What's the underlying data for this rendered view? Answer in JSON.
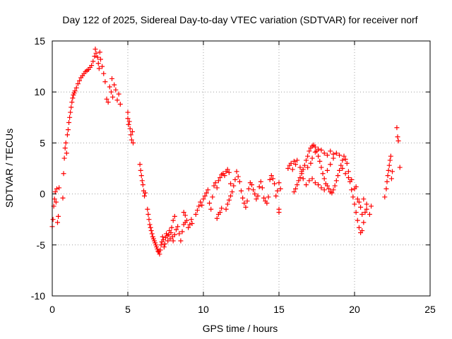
{
  "chart_data": {
    "type": "scatter",
    "title": "Day 122 of 2025, Sidereal Day-to-day VTEC variation (SDTVAR) for receiver norf",
    "xlabel": "GPS time / hours",
    "ylabel": "SDTVAR / TECUs",
    "xlim": [
      0,
      25
    ],
    "ylim": [
      -10,
      15
    ],
    "xticks": [
      0,
      5,
      10,
      15,
      20,
      25
    ],
    "yticks": [
      -10,
      -5,
      0,
      5,
      10,
      15
    ],
    "xtick_labels": [
      "0",
      "5",
      "10",
      "15",
      "20",
      "25"
    ],
    "ytick_labels": [
      "-10",
      "-5",
      "0",
      "5",
      "10",
      "15"
    ],
    "grid": true,
    "marker": "+",
    "color": "#ff0000",
    "series": [
      {
        "name": "SDTVAR",
        "points": [
          [
            0.0,
            -3.2
          ],
          [
            0.05,
            -2.5
          ],
          [
            0.1,
            -1.2
          ],
          [
            0.15,
            -0.5
          ],
          [
            0.2,
            0.2
          ],
          [
            0.25,
            -0.8
          ],
          [
            0.3,
            0.5
          ],
          [
            0.35,
            -2.8
          ],
          [
            0.4,
            -2.2
          ],
          [
            0.45,
            0.6
          ],
          [
            0.7,
            -0.4
          ],
          [
            0.75,
            2.0
          ],
          [
            0.8,
            3.5
          ],
          [
            0.85,
            4.5
          ],
          [
            0.9,
            5.0
          ],
          [
            0.95,
            4.0
          ],
          [
            1.0,
            5.8
          ],
          [
            1.05,
            6.3
          ],
          [
            1.1,
            7.0
          ],
          [
            1.15,
            7.5
          ],
          [
            1.2,
            8.0
          ],
          [
            1.25,
            8.5
          ],
          [
            1.3,
            9.0
          ],
          [
            1.35,
            9.4
          ],
          [
            1.4,
            9.7
          ],
          [
            1.45,
            9.9
          ],
          [
            1.5,
            10.1
          ],
          [
            1.6,
            10.4
          ],
          [
            1.7,
            10.8
          ],
          [
            1.8,
            11.1
          ],
          [
            1.9,
            11.4
          ],
          [
            2.0,
            11.6
          ],
          [
            2.1,
            11.8
          ],
          [
            2.2,
            12.0
          ],
          [
            2.3,
            12.1
          ],
          [
            2.4,
            12.2
          ],
          [
            2.5,
            12.4
          ],
          [
            2.6,
            12.6
          ],
          [
            2.7,
            13.0
          ],
          [
            2.8,
            13.5
          ],
          [
            2.85,
            14.2
          ],
          [
            2.9,
            13.8
          ],
          [
            3.0,
            13.4
          ],
          [
            3.05,
            12.8
          ],
          [
            3.1,
            12.3
          ],
          [
            3.15,
            13.9
          ],
          [
            3.2,
            13.2
          ],
          [
            3.3,
            12.5
          ],
          [
            3.4,
            11.8
          ],
          [
            3.5,
            11.0
          ],
          [
            3.6,
            9.3
          ],
          [
            3.7,
            9.0
          ],
          [
            3.8,
            10.5
          ],
          [
            3.9,
            10.0
          ],
          [
            3.95,
            11.3
          ],
          [
            4.0,
            9.5
          ],
          [
            4.1,
            10.7
          ],
          [
            4.2,
            10.2
          ],
          [
            4.3,
            9.2
          ],
          [
            4.4,
            9.8
          ],
          [
            4.5,
            8.8
          ],
          [
            5.0,
            8.0
          ],
          [
            5.0,
            7.4
          ],
          [
            5.05,
            6.8
          ],
          [
            5.1,
            7.1
          ],
          [
            5.15,
            6.4
          ],
          [
            5.2,
            5.8
          ],
          [
            5.25,
            5.3
          ],
          [
            5.3,
            6.1
          ],
          [
            5.35,
            5.0
          ],
          [
            5.8,
            2.9
          ],
          [
            5.85,
            2.3
          ],
          [
            5.9,
            1.8
          ],
          [
            5.95,
            1.3
          ],
          [
            6.0,
            0.9
          ],
          [
            6.05,
            0.3
          ],
          [
            6.1,
            -0.2
          ],
          [
            6.15,
            0.1
          ],
          [
            6.3,
            -1.5
          ],
          [
            6.35,
            -2.0
          ],
          [
            6.4,
            -2.5
          ],
          [
            6.45,
            -3.0
          ],
          [
            6.5,
            -3.3
          ],
          [
            6.55,
            -3.6
          ],
          [
            6.6,
            -3.9
          ],
          [
            6.65,
            -4.2
          ],
          [
            6.7,
            -4.4
          ],
          [
            6.75,
            -4.6
          ],
          [
            6.8,
            -4.8
          ],
          [
            6.85,
            -5.0
          ],
          [
            6.9,
            -5.2
          ],
          [
            6.95,
            -5.4
          ],
          [
            7.0,
            -5.6
          ],
          [
            7.05,
            -5.7
          ],
          [
            7.1,
            -5.9
          ],
          [
            7.15,
            -5.5
          ],
          [
            7.2,
            -5.0
          ],
          [
            7.25,
            -4.7
          ],
          [
            7.3,
            -4.2
          ],
          [
            7.35,
            -4.5
          ],
          [
            7.4,
            -5.2
          ],
          [
            7.45,
            -4.9
          ],
          [
            7.5,
            -4.3
          ],
          [
            7.55,
            -3.9
          ],
          [
            7.6,
            -4.1
          ],
          [
            7.65,
            -4.6
          ],
          [
            7.7,
            -4.0
          ],
          [
            7.75,
            -3.6
          ],
          [
            7.8,
            -4.4
          ],
          [
            7.85,
            -3.8
          ],
          [
            7.9,
            -3.3
          ],
          [
            7.95,
            -4.2
          ],
          [
            8.0,
            -4.6
          ],
          [
            8.1,
            -4.0
          ],
          [
            8.2,
            -3.5
          ],
          [
            8.3,
            -3.2
          ],
          [
            8.4,
            -3.9
          ],
          [
            8.5,
            -4.6
          ],
          [
            8.6,
            -3.7
          ],
          [
            8.7,
            -3.0
          ],
          [
            8.8,
            -2.8
          ],
          [
            8.9,
            -2.6
          ],
          [
            9.0,
            -3.3
          ],
          [
            9.1,
            -3.0
          ],
          [
            9.2,
            -2.5
          ],
          [
            9.25,
            -2.9
          ],
          [
            8.0,
            -2.6
          ],
          [
            8.1,
            -2.2
          ],
          [
            8.7,
            -1.8
          ],
          [
            8.8,
            -2.1
          ],
          [
            9.5,
            -2.0
          ],
          [
            9.6,
            -1.6
          ],
          [
            9.7,
            -1.2
          ],
          [
            9.8,
            -0.8
          ],
          [
            9.9,
            -1.1
          ],
          [
            10.0,
            -0.5
          ],
          [
            10.1,
            -0.2
          ],
          [
            10.2,
            0.1
          ],
          [
            10.3,
            0.4
          ],
          [
            10.4,
            -0.9
          ],
          [
            10.5,
            -1.5
          ],
          [
            10.6,
            -0.3
          ],
          [
            10.7,
            0.8
          ],
          [
            10.8,
            1.1
          ],
          [
            10.9,
            0.6
          ],
          [
            11.0,
            1.3
          ],
          [
            11.1,
            1.6
          ],
          [
            11.2,
            1.9
          ],
          [
            11.3,
            2.0
          ],
          [
            11.4,
            1.8
          ],
          [
            11.5,
            2.2
          ],
          [
            11.6,
            2.4
          ],
          [
            11.7,
            2.1
          ],
          [
            11.8,
            1.0
          ],
          [
            11.9,
            0.2
          ],
          [
            12.0,
            0.8
          ],
          [
            12.1,
            1.4
          ],
          [
            12.2,
            2.2
          ],
          [
            12.3,
            1.7
          ],
          [
            12.4,
            1.2
          ],
          [
            12.5,
            0.3
          ],
          [
            12.6,
            -0.4
          ],
          [
            12.7,
            -0.9
          ],
          [
            12.8,
            -1.3
          ],
          [
            12.9,
            -0.7
          ],
          [
            13.0,
            0.5
          ],
          [
            13.1,
            1.1
          ],
          [
            13.2,
            0.9
          ],
          [
            13.3,
            0.4
          ],
          [
            13.4,
            0.0
          ],
          [
            13.5,
            -0.5
          ],
          [
            13.6,
            -0.2
          ],
          [
            13.7,
            0.7
          ],
          [
            13.8,
            1.2
          ],
          [
            13.9,
            0.6
          ],
          [
            14.0,
            -0.4
          ],
          [
            14.1,
            -0.7
          ],
          [
            14.2,
            -0.9
          ],
          [
            14.3,
            -0.3
          ],
          [
            14.4,
            1.4
          ],
          [
            14.5,
            1.8
          ],
          [
            14.6,
            1.5
          ],
          [
            14.7,
            1.0
          ],
          [
            14.8,
            -0.2
          ],
          [
            14.9,
            0.3
          ],
          [
            15.0,
            1.1
          ],
          [
            15.1,
            0.5
          ],
          [
            15.0,
            -1.8
          ],
          [
            15.0,
            -1.5
          ],
          [
            11.5,
            -1.5
          ],
          [
            11.6,
            -1.0
          ],
          [
            11.7,
            -0.6
          ],
          [
            11.8,
            -0.2
          ],
          [
            10.9,
            -2.4
          ],
          [
            11.0,
            -2.0
          ],
          [
            11.1,
            -1.8
          ],
          [
            11.2,
            -1.4
          ],
          [
            16.0,
            0.2
          ],
          [
            16.1,
            0.5
          ],
          [
            16.2,
            0.9
          ],
          [
            16.3,
            1.3
          ],
          [
            16.4,
            1.6
          ],
          [
            16.5,
            2.0
          ],
          [
            16.6,
            2.4
          ],
          [
            16.7,
            2.8
          ],
          [
            16.8,
            3.3
          ],
          [
            16.9,
            3.7
          ],
          [
            17.0,
            4.2
          ],
          [
            17.1,
            4.5
          ],
          [
            17.2,
            4.7
          ],
          [
            17.3,
            4.8
          ],
          [
            17.4,
            4.6
          ],
          [
            17.5,
            4.2
          ],
          [
            17.6,
            3.7
          ],
          [
            17.7,
            3.2
          ],
          [
            17.8,
            2.6
          ],
          [
            17.9,
            2.0
          ],
          [
            18.0,
            1.5
          ],
          [
            18.1,
            1.0
          ],
          [
            18.2,
            0.8
          ],
          [
            18.3,
            0.5
          ],
          [
            18.4,
            0.2
          ],
          [
            18.5,
            0.1
          ],
          [
            18.6,
            0.4
          ],
          [
            18.7,
            0.8
          ],
          [
            18.8,
            1.3
          ],
          [
            18.9,
            1.8
          ],
          [
            19.0,
            2.3
          ],
          [
            19.1,
            2.8
          ],
          [
            19.2,
            3.3
          ],
          [
            19.3,
            3.7
          ],
          [
            19.4,
            3.4
          ],
          [
            19.5,
            3.0
          ],
          [
            19.6,
            2.2
          ],
          [
            19.7,
            1.2
          ],
          [
            19.8,
            0.4
          ],
          [
            19.9,
            -0.3
          ],
          [
            20.0,
            -1.0
          ],
          [
            20.1,
            -1.8
          ],
          [
            20.2,
            -2.6
          ],
          [
            20.3,
            -3.3
          ],
          [
            20.4,
            -3.8
          ],
          [
            20.5,
            -3.6
          ],
          [
            20.6,
            -2.8
          ],
          [
            20.7,
            -1.8
          ],
          [
            20.8,
            -1.0
          ],
          [
            15.6,
            2.5
          ],
          [
            15.7,
            2.8
          ],
          [
            15.8,
            3.0
          ],
          [
            15.9,
            2.4
          ],
          [
            16.0,
            3.2
          ],
          [
            16.1,
            2.9
          ],
          [
            16.2,
            3.3
          ],
          [
            16.4,
            2.6
          ],
          [
            16.5,
            2.2
          ],
          [
            16.6,
            1.5
          ],
          [
            16.8,
            0.9
          ],
          [
            17.0,
            1.3
          ],
          [
            17.2,
            1.5
          ],
          [
            17.4,
            1.1
          ],
          [
            17.6,
            0.9
          ],
          [
            17.8,
            0.6
          ],
          [
            18.0,
            0.4
          ],
          [
            18.2,
            2.3
          ],
          [
            18.4,
            2.9
          ],
          [
            18.6,
            3.5
          ],
          [
            18.8,
            4.0
          ],
          [
            19.0,
            3.8
          ],
          [
            19.2,
            2.5
          ],
          [
            19.4,
            2.0
          ],
          [
            19.6,
            1.6
          ],
          [
            19.8,
            1.4
          ],
          [
            20.0,
            0.5
          ],
          [
            20.2,
            -0.5
          ],
          [
            20.4,
            -1.3
          ],
          [
            20.5,
            -2.0
          ],
          [
            17.4,
            4.1
          ],
          [
            17.6,
            4.4
          ],
          [
            17.8,
            4.3
          ],
          [
            18.0,
            4.0
          ],
          [
            18.2,
            3.8
          ],
          [
            18.4,
            4.2
          ],
          [
            18.6,
            3.9
          ],
          [
            17.2,
            3.5
          ],
          [
            17.1,
            3.0
          ],
          [
            16.9,
            2.6
          ],
          [
            20.1,
            0.7
          ],
          [
            20.3,
            -0.8
          ],
          [
            20.6,
            -0.5
          ],
          [
            20.8,
            -1.5
          ],
          [
            21.0,
            -2.0
          ],
          [
            21.1,
            -1.2
          ],
          [
            22.0,
            -0.3
          ],
          [
            22.1,
            0.5
          ],
          [
            22.15,
            1.2
          ],
          [
            22.2,
            1.8
          ],
          [
            22.25,
            2.3
          ],
          [
            22.3,
            2.8
          ],
          [
            22.35,
            3.3
          ],
          [
            22.4,
            3.7
          ],
          [
            22.45,
            1.5
          ],
          [
            22.5,
            2.2
          ],
          [
            22.8,
            6.5
          ],
          [
            22.85,
            5.6
          ],
          [
            22.9,
            5.2
          ],
          [
            23.0,
            2.6
          ]
        ]
      }
    ]
  }
}
